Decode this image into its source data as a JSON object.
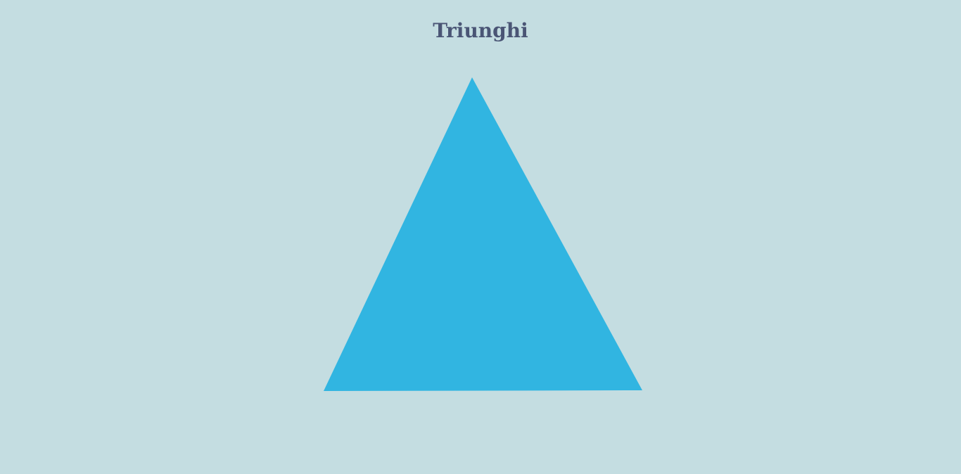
{
  "page": {
    "title": "Triunghi"
  },
  "colors": {
    "background": "#c4dde1",
    "title": "#4a5575",
    "shape_fill": "#31b5e1"
  },
  "shape": {
    "kind": "triangle"
  }
}
